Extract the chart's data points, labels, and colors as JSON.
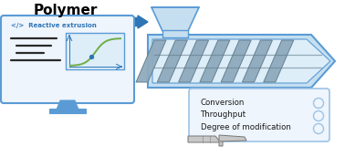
{
  "bg_color": "#ffffff",
  "title": "Polymer",
  "title_color": "#000000",
  "title_fontsize": 11,
  "title_bold": true,
  "arrow_color": "#2e75b6",
  "monitor_border_color": "#5b9bd5",
  "monitor_bg": "#eef5fc",
  "code_label": "</>  Reactive extrusion",
  "code_color": "#2e75b6",
  "graph_border": "#5b9bd5",
  "graph_bg": "#ddeef9",
  "curve_color": "#70ad47",
  "curve_dot_color": "#2e75b6",
  "extruder_outer_color": "#5b9bd5",
  "extruder_border2": "#2e75b6",
  "extruder_inner_bg": "#c5dff0",
  "extruder_fill": "#ddeef9",
  "screw_color": "#8faabd",
  "screw_dark": "#607d8b",
  "hopper_color": "#5b9bd5",
  "hopper_fill": "#c5dff0",
  "output_box_border": "#9dc3e6",
  "output_box_bg": "#eef5fc",
  "output_texts": [
    "Conversion",
    "Throughput",
    "Degree of modification"
  ],
  "output_text_color": "#1a1a1a",
  "output_circle_color": "#9dc3e6",
  "hand_color": "#c8c8c8",
  "hand_border": "#777777"
}
